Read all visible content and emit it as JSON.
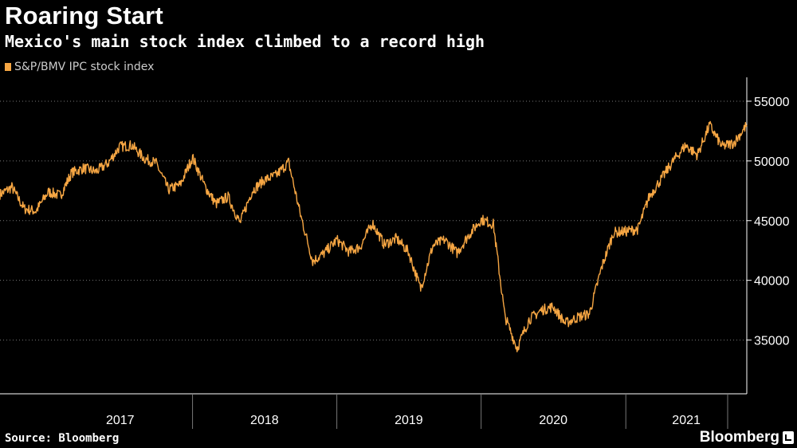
{
  "header": {
    "title": "Roaring Start",
    "subtitle": "Mexico's main stock index climbed to a record high"
  },
  "legend": {
    "label": "S&P/BMV IPC stock index"
  },
  "footer": {
    "source": "Source: Bloomberg",
    "brand": "Bloomberg"
  },
  "colors": {
    "background": "#000000",
    "series": "#f6a643",
    "grid": "#777777",
    "axis": "#ffffff"
  },
  "chart_data": {
    "type": "line",
    "title": "Roaring Start",
    "subtitle": "Mexico's main stock index climbed to a record high",
    "xlabel": "",
    "ylabel": "",
    "ylim": [
      30500,
      57000
    ],
    "yticks": [
      35000,
      40000,
      45000,
      50000,
      55000
    ],
    "ytick_labels": [
      "35000",
      "40000",
      "45000",
      "50000",
      "55000"
    ],
    "xlim": [
      "2016-09-01",
      "2021-11-03"
    ],
    "year_labels": [
      {
        "label": "2017",
        "start": "2017-01-01",
        "end": "2017-12-31"
      },
      {
        "label": "2018",
        "start": "2018-01-01",
        "end": "2018-12-31"
      },
      {
        "label": "2019",
        "start": "2019-01-01",
        "end": "2019-12-31"
      },
      {
        "label": "2020",
        "start": "2020-01-01",
        "end": "2020-12-31"
      },
      {
        "label": "2021",
        "start": "2021-01-01",
        "end": "2021-11-03"
      }
    ],
    "grid": "horizontal dotted",
    "legend_position": "top-left",
    "series": [
      {
        "name": "S&P/BMV IPC stock index",
        "x": [
          "2016-09-01",
          "2016-10-01",
          "2016-11-01",
          "2016-12-01",
          "2017-01-01",
          "2017-02-01",
          "2017-03-01",
          "2017-04-01",
          "2017-05-01",
          "2017-06-01",
          "2017-07-01",
          "2017-08-01",
          "2017-09-01",
          "2017-10-01",
          "2017-11-01",
          "2017-12-01",
          "2018-01-01",
          "2018-02-01",
          "2018-03-01",
          "2018-04-01",
          "2018-05-01",
          "2018-06-01",
          "2018-07-01",
          "2018-08-01",
          "2018-09-01",
          "2018-10-01",
          "2018-11-01",
          "2018-12-01",
          "2019-01-01",
          "2019-02-01",
          "2019-03-01",
          "2019-04-01",
          "2019-05-01",
          "2019-06-01",
          "2019-07-01",
          "2019-08-01",
          "2019-09-01",
          "2019-10-01",
          "2019-11-01",
          "2019-12-01",
          "2020-01-01",
          "2020-02-01",
          "2020-03-01",
          "2020-04-01",
          "2020-05-01",
          "2020-06-01",
          "2020-07-01",
          "2020-08-01",
          "2020-09-01",
          "2020-10-01",
          "2020-11-01",
          "2020-12-01",
          "2021-01-01",
          "2021-02-01",
          "2021-03-01",
          "2021-04-01",
          "2021-05-01",
          "2021-06-01",
          "2021-07-01",
          "2021-08-01",
          "2021-09-01",
          "2021-10-01",
          "2021-11-03"
        ],
        "values": [
          47200,
          47800,
          46000,
          45800,
          47400,
          47100,
          49000,
          49400,
          49100,
          49800,
          51200,
          51300,
          50200,
          49800,
          47600,
          48000,
          50300,
          47900,
          46400,
          47000,
          44800,
          47500,
          48400,
          48800,
          49900,
          45500,
          41600,
          42300,
          43400,
          42400,
          42800,
          44800,
          43000,
          43500,
          42400,
          39300,
          42900,
          43400,
          42300,
          43800,
          45100,
          44700,
          37000,
          34300,
          36700,
          37500,
          37800,
          36400,
          36900,
          37200,
          41100,
          44000,
          44100,
          44300,
          47000,
          48500,
          50000,
          51300,
          50500,
          53000,
          51200,
          51500,
          53000
        ]
      }
    ]
  }
}
